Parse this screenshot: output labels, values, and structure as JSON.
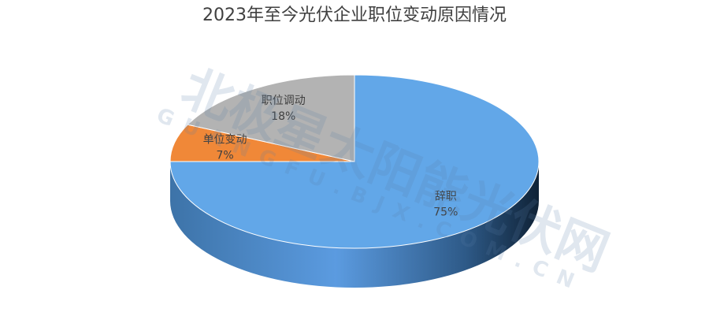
{
  "chart_data": {
    "type": "pie3d",
    "title": "2023年至今光伏企业职位变动原因情况",
    "categories": [
      "辞职",
      "单位变动",
      "职位调动"
    ],
    "values": [
      75,
      7,
      18
    ],
    "value_labels": [
      "75%",
      "7%",
      "18%"
    ],
    "colors": [
      "#62a7e8",
      "#f08838",
      "#b3b3b3"
    ],
    "watermark": [
      "北极星太阳能光伏网",
      "GUANGFU.BJX.COM.CN"
    ]
  }
}
